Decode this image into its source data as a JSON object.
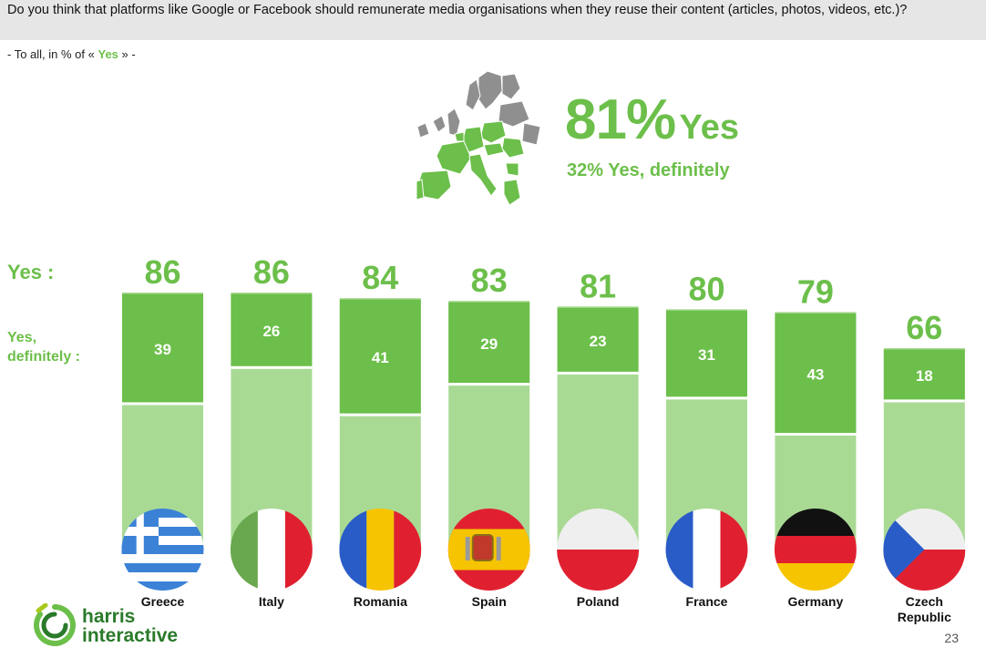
{
  "question": "Do you think that platforms like Google or Facebook should remunerate media organisations when they reuse their content (articles, photos, videos, etc.)?",
  "base": {
    "prefix": "- To all, in % of «",
    "highlight": "Yes",
    "suffix": "» -"
  },
  "summary": {
    "yes_pct": "81%",
    "yes_word": "Yes",
    "definitely": "32% Yes, definitely"
  },
  "row_labels": {
    "yes": "Yes :",
    "definitely_line1": "Yes,",
    "definitely_line2": "definitely :"
  },
  "colors": {
    "dark_green": "#6cbf4a",
    "light_green": "#a9da94"
  },
  "chart_data": {
    "type": "bar",
    "categories": [
      "Greece",
      "Italy",
      "Romania",
      "Spain",
      "Poland",
      "France",
      "Germany",
      "Czech Republic"
    ],
    "series": [
      {
        "name": "Yes",
        "values": [
          86,
          86,
          84,
          83,
          81,
          80,
          79,
          66
        ]
      },
      {
        "name": "Yes, definitely",
        "values": [
          39,
          26,
          41,
          29,
          23,
          31,
          43,
          18
        ]
      }
    ],
    "flags": [
      "greece-flag-icon",
      "italy-flag-icon",
      "romania-flag-icon",
      "spain-flag-icon",
      "poland-flag-icon",
      "france-flag-icon",
      "germany-flag-icon",
      "czech-flag-icon"
    ]
  },
  "logo": {
    "line1": "harris",
    "line2": "interactive"
  },
  "page_number": "23"
}
